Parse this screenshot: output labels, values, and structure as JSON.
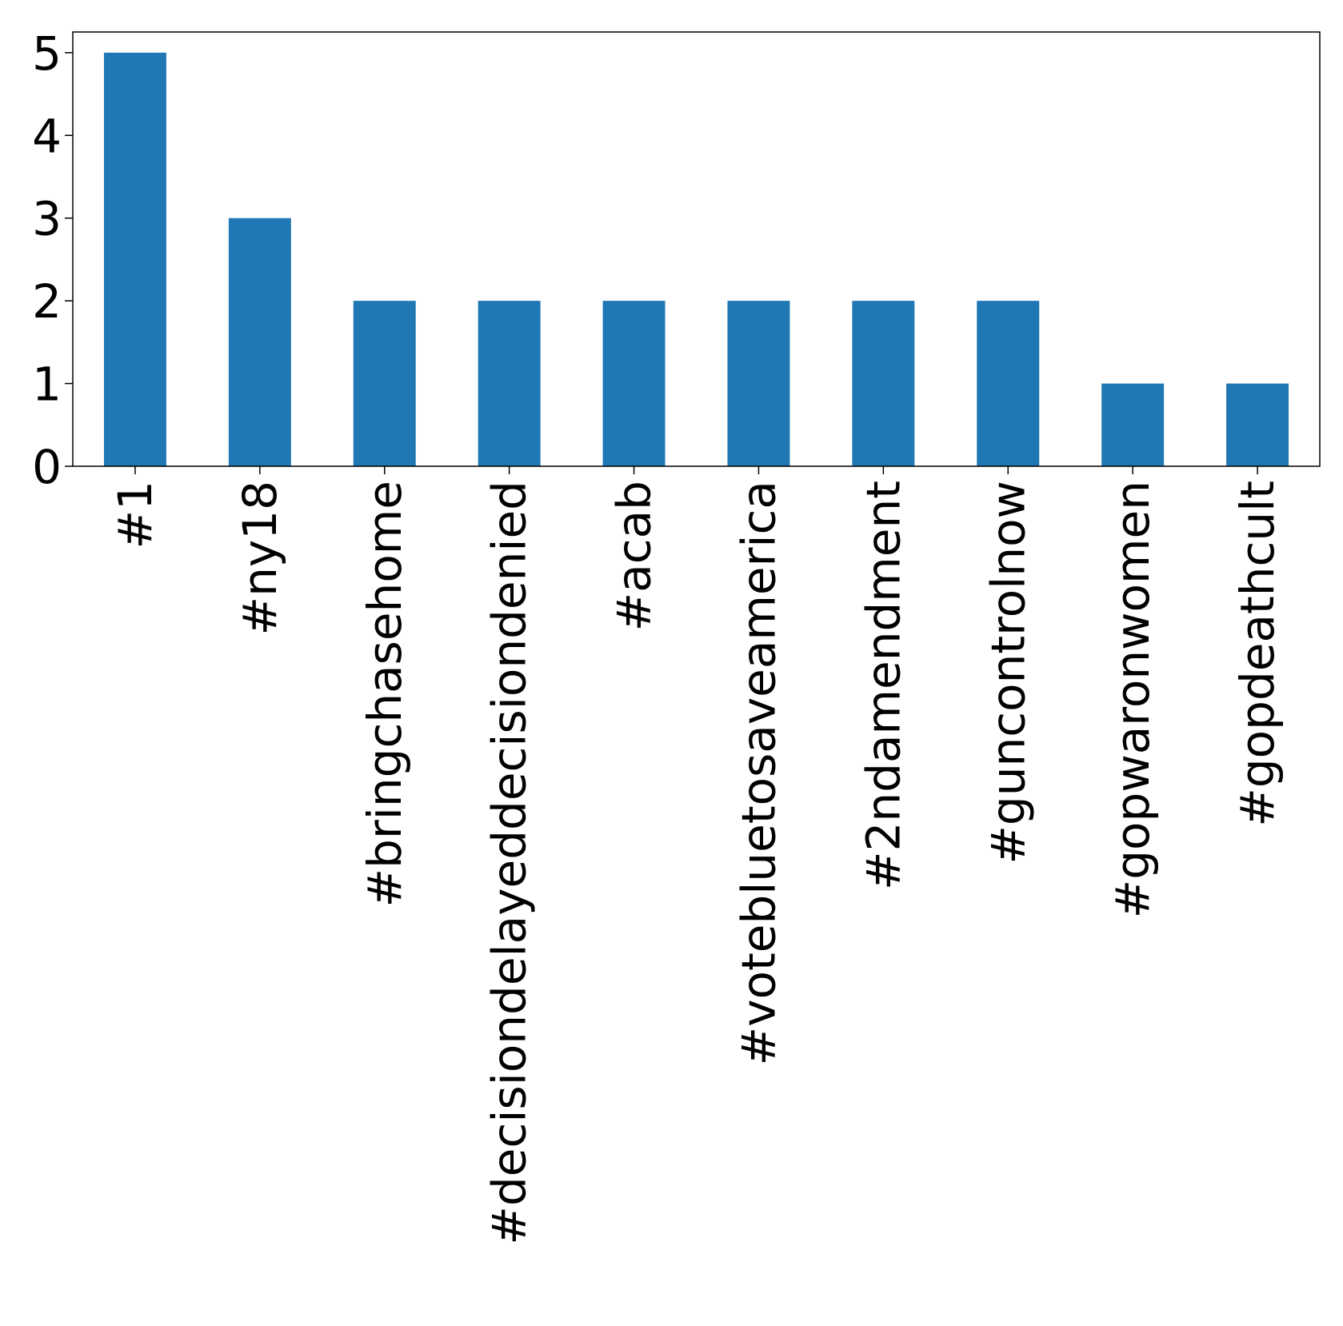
{
  "chart_data": {
    "type": "bar",
    "title": "",
    "xlabel": "",
    "ylabel": "",
    "categories": [
      "#1",
      "#ny18",
      "#bringchasehome",
      "#decisiondelayeddecisiondenied",
      "#acab",
      "#votebluetosaveamerica",
      "#2ndamendment",
      "#guncontrolnow",
      "#gopwaronwomen",
      "#gopdeathcult"
    ],
    "values": [
      5,
      3,
      2,
      2,
      2,
      2,
      2,
      2,
      1,
      1
    ],
    "yticks": [
      "0",
      "1",
      "2",
      "3",
      "4",
      "5"
    ],
    "ylim": [
      0,
      5.25
    ],
    "grid": false,
    "legend": "none",
    "bar_color": "#1f77b4",
    "axis_color": "#000000"
  }
}
